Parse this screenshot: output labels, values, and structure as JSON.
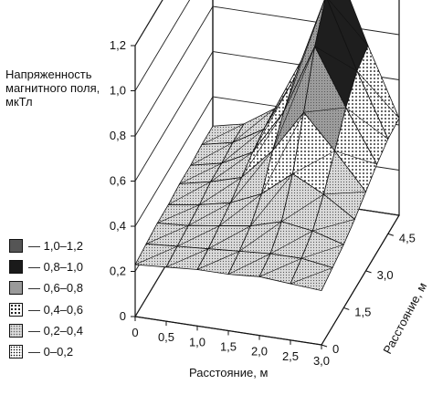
{
  "chart_data": {
    "type": "surface3d",
    "ylabel": "Напряженность магнитного поля, мкТл",
    "xlabel": "Расстояние, м",
    "zlabel": "Расстояние, м",
    "x_ticks": [
      "0",
      "0,5",
      "1,0",
      "1,5",
      "2,0",
      "2,5",
      "3,0"
    ],
    "depth_ticks": [
      "0",
      "1,5",
      "3,0",
      "4,5"
    ],
    "y_ticks": [
      "0",
      "0,2",
      "0,4",
      "0,6",
      "0,8",
      "1,0",
      "1,2"
    ],
    "ylim": [
      0,
      1.2
    ],
    "x_values": [
      0,
      0.5,
      1.0,
      1.5,
      2.0,
      2.5,
      3.0
    ],
    "depth_values": [
      0,
      0.75,
      1.5,
      2.25,
      3.0,
      3.75,
      4.5,
      5.25
    ],
    "field": [
      [
        0.23,
        0.24,
        0.25,
        0.25,
        0.26,
        0.26,
        0.27,
        0.27
      ],
      [
        0.24,
        0.25,
        0.26,
        0.27,
        0.29,
        0.29,
        0.3,
        0.3
      ],
      [
        0.25,
        0.26,
        0.28,
        0.3,
        0.33,
        0.36,
        0.38,
        0.39
      ],
      [
        0.25,
        0.27,
        0.3,
        0.36,
        0.47,
        0.56,
        0.63,
        0.66
      ],
      [
        0.26,
        0.28,
        0.34,
        0.47,
        0.66,
        0.87,
        1.01,
        1.06
      ],
      [
        0.25,
        0.28,
        0.32,
        0.4,
        0.51,
        0.62,
        0.7,
        0.73
      ],
      [
        0.24,
        0.26,
        0.28,
        0.31,
        0.35,
        0.39,
        0.42,
        0.43
      ]
    ],
    "legend": [
      {
        "label": "— 1,0–1,2",
        "pattern": "dark-gray"
      },
      {
        "label": "— 0,8–1,0",
        "pattern": "black"
      },
      {
        "label": "— 0,6–0,8",
        "pattern": "medium-gray"
      },
      {
        "label": "— 0,4–0,6",
        "pattern": "coarse-dots"
      },
      {
        "label": "— 0,2–0,4",
        "pattern": "gray-dots"
      },
      {
        "label": "— 0–0,2",
        "pattern": "fine-dots"
      }
    ]
  }
}
